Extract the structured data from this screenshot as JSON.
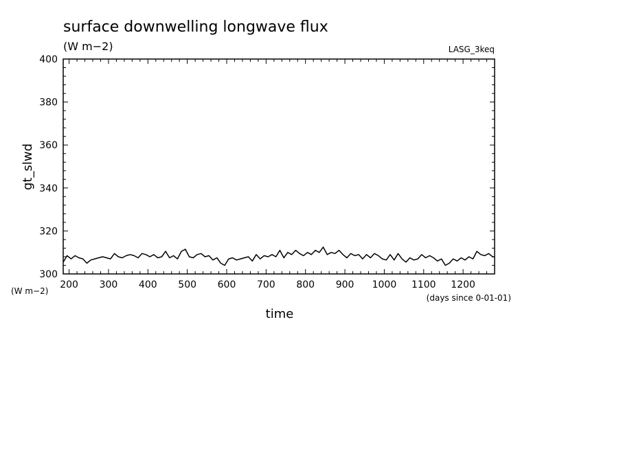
{
  "chart_data": {
    "type": "line",
    "title": "surface downwelling longwave flux",
    "subtitle": "(W m−2)",
    "dataset_label": "LASG_3keq",
    "xlabel": "time",
    "x_units": "(days since 0-01-01)",
    "ylabel": "gt_slwd",
    "y_units": "(W m−2)",
    "xlim": [
      185,
      1280
    ],
    "ylim": [
      300,
      400
    ],
    "xticks": [
      200,
      300,
      400,
      500,
      600,
      700,
      800,
      900,
      1000,
      1100,
      1200
    ],
    "yticks": [
      300,
      320,
      340,
      360,
      380,
      400
    ],
    "grid": false,
    "series": [
      {
        "x": [
          185,
          195,
          205,
          215,
          225,
          235,
          245,
          255,
          265,
          275,
          285,
          295,
          305,
          315,
          325,
          335,
          345,
          355,
          365,
          375,
          385,
          395,
          405,
          415,
          425,
          435,
          445,
          455,
          465,
          475,
          485,
          495,
          505,
          515,
          525,
          535,
          545,
          555,
          565,
          575,
          585,
          595,
          605,
          615,
          625,
          635,
          645,
          655,
          665,
          675,
          685,
          695,
          705,
          715,
          725,
          735,
          745,
          755,
          765,
          775,
          785,
          795,
          805,
          815,
          825,
          835,
          845,
          855,
          865,
          875,
          885,
          895,
          905,
          915,
          925,
          935,
          945,
          955,
          965,
          975,
          985,
          995,
          1005,
          1015,
          1025,
          1035,
          1045,
          1055,
          1065,
          1075,
          1085,
          1095,
          1105,
          1115,
          1125,
          1135,
          1145,
          1155,
          1165,
          1175,
          1185,
          1195,
          1205,
          1215,
          1225,
          1235,
          1245,
          1255,
          1265,
          1275,
          1280
        ],
        "y": [
          305.5,
          308.5,
          307.0,
          308.5,
          307.5,
          307.0,
          305.0,
          306.5,
          307.0,
          307.5,
          308.0,
          307.5,
          307.0,
          309.5,
          308.0,
          307.5,
          308.5,
          309.0,
          308.5,
          307.5,
          309.5,
          309.0,
          308.0,
          309.0,
          307.5,
          308.0,
          310.5,
          307.5,
          308.5,
          307.0,
          310.5,
          311.5,
          308.0,
          307.5,
          309.0,
          309.5,
          308.0,
          308.5,
          306.5,
          307.5,
          305.0,
          304.0,
          307.0,
          307.5,
          306.5,
          307.0,
          307.5,
          308.0,
          306.0,
          309.0,
          307.0,
          308.5,
          308.0,
          309.0,
          308.0,
          311.0,
          307.5,
          310.0,
          309.0,
          311.0,
          309.5,
          308.5,
          310.0,
          309.0,
          311.0,
          310.0,
          312.5,
          309.0,
          310.0,
          309.5,
          311.0,
          309.0,
          307.5,
          309.5,
          308.5,
          309.0,
          307.0,
          309.0,
          307.5,
          309.5,
          308.5,
          307.0,
          306.5,
          309.0,
          306.5,
          309.5,
          307.0,
          305.5,
          307.5,
          306.5,
          307.0,
          309.0,
          307.5,
          308.5,
          307.5,
          306.0,
          307.0,
          304.0,
          305.0,
          307.0,
          306.0,
          307.5,
          306.5,
          308.0,
          307.0,
          310.5,
          309.0,
          308.5,
          309.5,
          308.0,
          308.0
        ]
      }
    ]
  }
}
